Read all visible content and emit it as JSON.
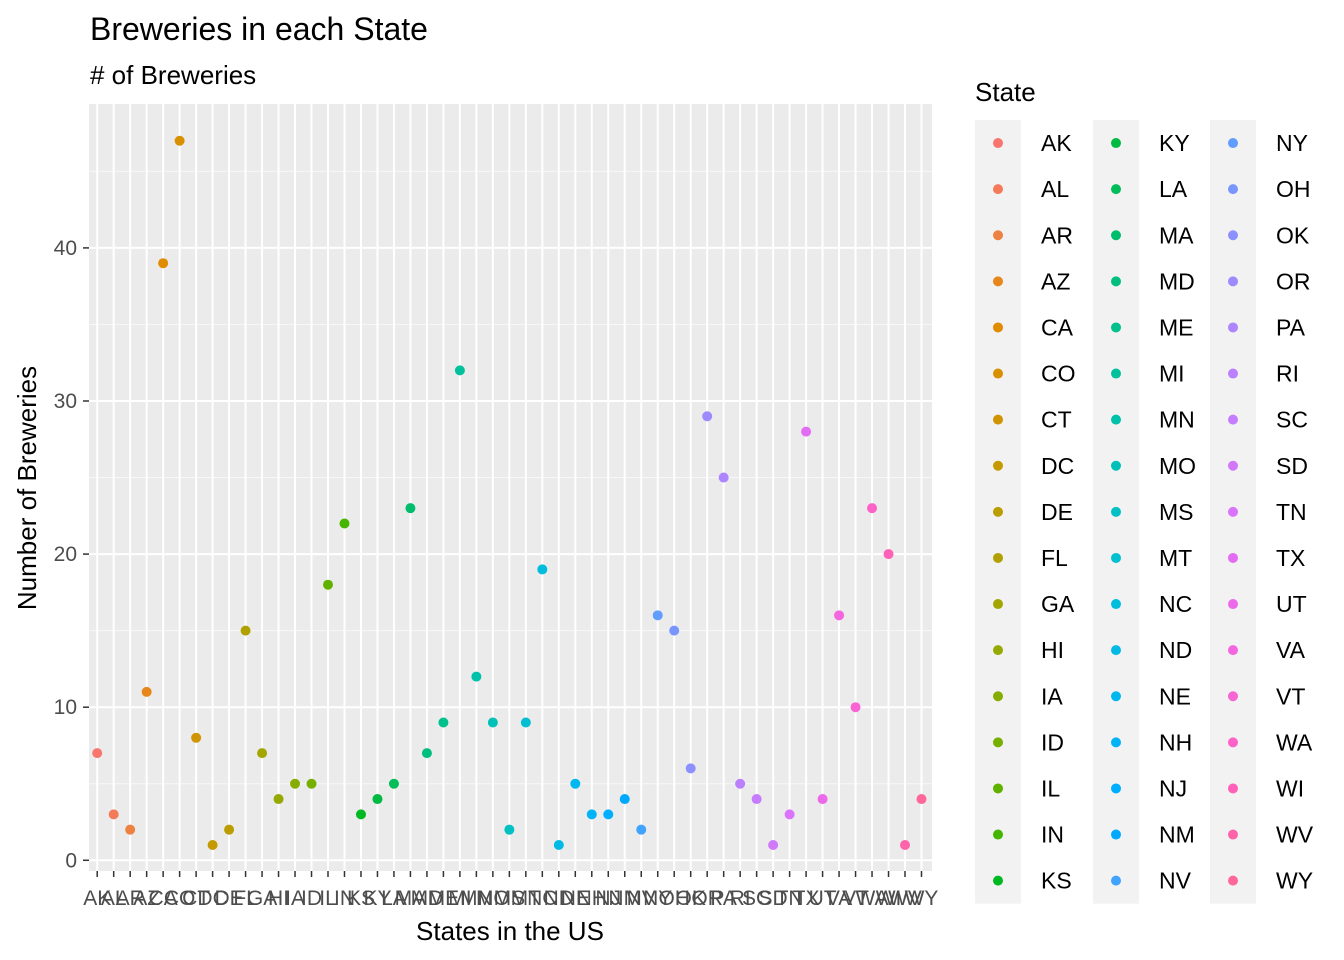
{
  "chart_data": {
    "type": "scatter",
    "title": "Breweries in each State",
    "subtitle": "# of Breweries",
    "xlabel": "States in the US",
    "ylabel": "Number of Breweries",
    "ylim": [
      -0.7,
      49.4
    ],
    "y_ticks": [
      0,
      10,
      20,
      30,
      40
    ],
    "grid": true,
    "legend": {
      "title": "State",
      "placement": "right",
      "columns": 3
    },
    "categories": [
      "AK",
      "AL",
      "AR",
      "AZ",
      "CA",
      "CO",
      "CT",
      "DC",
      "DE",
      "FL",
      "GA",
      "HI",
      "IA",
      "ID",
      "IL",
      "IN",
      "KS",
      "KY",
      "LA",
      "MA",
      "MD",
      "ME",
      "MI",
      "MN",
      "MO",
      "MS",
      "MT",
      "NC",
      "ND",
      "NE",
      "NH",
      "NJ",
      "NM",
      "NV",
      "NY",
      "OH",
      "OK",
      "OR",
      "PA",
      "RI",
      "SC",
      "SD",
      "TN",
      "TX",
      "UT",
      "VA",
      "VT",
      "WA",
      "WI",
      "WV",
      "WY"
    ],
    "values": [
      7,
      3,
      2,
      11,
      39,
      47,
      8,
      1,
      2,
      15,
      7,
      4,
      5,
      5,
      18,
      22,
      3,
      4,
      5,
      23,
      7,
      9,
      32,
      12,
      9,
      2,
      9,
      19,
      1,
      5,
      3,
      3,
      4,
      2,
      16,
      15,
      6,
      29,
      25,
      5,
      4,
      1,
      3,
      28,
      4,
      16,
      10,
      23,
      20,
      1,
      4
    ],
    "colors": [
      "#F8766D",
      "#F37B59",
      "#ED8141",
      "#E7861B",
      "#E08B00",
      "#D89000",
      "#CF9400",
      "#C59900",
      "#BB9D00",
      "#B0A100",
      "#A3A500",
      "#96A900",
      "#87AC00",
      "#76AF00",
      "#61B200",
      "#45B500",
      "#00B81F",
      "#00BA42",
      "#00BC59",
      "#00BD6D",
      "#00BF7E",
      "#00C08D",
      "#00C19C",
      "#00C1AA",
      "#00C1B7",
      "#00C0C4",
      "#00BFD0",
      "#00BDDB",
      "#00BAE5",
      "#00B7EF",
      "#00B3F7",
      "#00AEFF",
      "#00A9FF",
      "#40A3FF",
      "#619CFF",
      "#7996FF",
      "#8D90FF",
      "#9E8AFF",
      "#AD85FF",
      "#BA80FF",
      "#C67CFF",
      "#D078F8",
      "#DB72FB",
      "#E46CF3",
      "#EC69EA",
      "#F366E0",
      "#F864D4",
      "#FC62C7",
      "#FF61B9",
      "#FF63AA",
      "#FF669A"
    ]
  }
}
